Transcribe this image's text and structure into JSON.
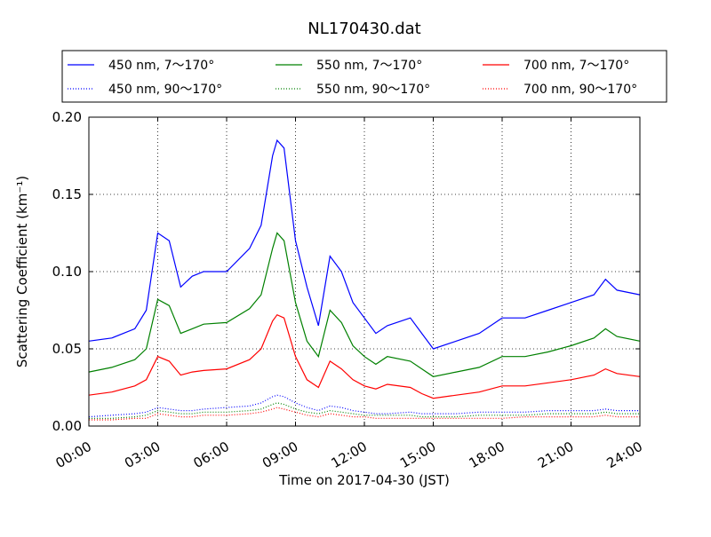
{
  "chart_data": {
    "type": "line",
    "title": "NL170430.dat",
    "xlabel": "Time on 2017-04-30 (JST)",
    "ylabel": "Scattering Coefficient (km⁻¹)",
    "xlim": [
      "00:00",
      "24:00"
    ],
    "ylim": [
      0,
      0.2
    ],
    "grid": true,
    "legend_position": "top",
    "x_ticks": [
      "00:00",
      "03:00",
      "06:00",
      "09:00",
      "12:00",
      "15:00",
      "18:00",
      "21:00",
      "24:00"
    ],
    "y_ticks": [
      "0.00",
      "0.05",
      "0.10",
      "0.15",
      "0.20"
    ],
    "x_hours": [
      0,
      1,
      2,
      2.5,
      3,
      3.5,
      4,
      4.5,
      5,
      6,
      7,
      7.5,
      8,
      8.2,
      8.5,
      9,
      9.5,
      10,
      10.5,
      11,
      11.5,
      12,
      12.5,
      13,
      14,
      14.5,
      15,
      16,
      17,
      18,
      19,
      20,
      21,
      22,
      22.5,
      23,
      24
    ],
    "series": [
      {
        "name": "450 nm, 7～170°",
        "color": "#0000ff",
        "style": "solid",
        "values": [
          0.055,
          0.057,
          0.063,
          0.075,
          0.125,
          0.12,
          0.09,
          0.097,
          0.1,
          0.1,
          0.115,
          0.13,
          0.175,
          0.185,
          0.18,
          0.12,
          0.09,
          0.065,
          0.11,
          0.1,
          0.08,
          0.07,
          0.06,
          0.065,
          0.07,
          0.06,
          0.05,
          0.055,
          0.06,
          0.07,
          0.07,
          0.075,
          0.08,
          0.085,
          0.095,
          0.088,
          0.085
        ]
      },
      {
        "name": "450 nm, 90～170°",
        "color": "#0000ff",
        "style": "dotted",
        "values": [
          0.006,
          0.007,
          0.008,
          0.009,
          0.012,
          0.011,
          0.01,
          0.01,
          0.011,
          0.012,
          0.013,
          0.015,
          0.019,
          0.02,
          0.019,
          0.015,
          0.012,
          0.01,
          0.013,
          0.012,
          0.01,
          0.009,
          0.008,
          0.008,
          0.009,
          0.008,
          0.008,
          0.008,
          0.009,
          0.009,
          0.009,
          0.01,
          0.01,
          0.01,
          0.011,
          0.01,
          0.01
        ]
      },
      {
        "name": "550 nm, 7～170°",
        "color": "#008000",
        "style": "solid",
        "values": [
          0.035,
          0.038,
          0.043,
          0.05,
          0.082,
          0.078,
          0.06,
          0.063,
          0.066,
          0.067,
          0.076,
          0.085,
          0.115,
          0.125,
          0.12,
          0.08,
          0.055,
          0.045,
          0.075,
          0.067,
          0.052,
          0.045,
          0.04,
          0.045,
          0.042,
          0.037,
          0.032,
          0.035,
          0.038,
          0.045,
          0.045,
          0.048,
          0.052,
          0.057,
          0.063,
          0.058,
          0.055
        ]
      },
      {
        "name": "550 nm, 90～170°",
        "color": "#008000",
        "style": "dotted",
        "values": [
          0.005,
          0.005,
          0.006,
          0.007,
          0.01,
          0.009,
          0.008,
          0.008,
          0.009,
          0.009,
          0.01,
          0.011,
          0.014,
          0.015,
          0.014,
          0.011,
          0.009,
          0.008,
          0.01,
          0.009,
          0.008,
          0.007,
          0.007,
          0.007,
          0.007,
          0.006,
          0.006,
          0.006,
          0.007,
          0.007,
          0.007,
          0.008,
          0.008,
          0.008,
          0.009,
          0.008,
          0.008
        ]
      },
      {
        "name": "700 nm, 7～170°",
        "color": "#ff0000",
        "style": "solid",
        "values": [
          0.02,
          0.022,
          0.026,
          0.03,
          0.045,
          0.042,
          0.033,
          0.035,
          0.036,
          0.037,
          0.043,
          0.05,
          0.068,
          0.072,
          0.07,
          0.045,
          0.03,
          0.025,
          0.042,
          0.037,
          0.03,
          0.026,
          0.024,
          0.027,
          0.025,
          0.021,
          0.018,
          0.02,
          0.022,
          0.026,
          0.026,
          0.028,
          0.03,
          0.033,
          0.037,
          0.034,
          0.032
        ]
      },
      {
        "name": "700 nm, 90～170°",
        "color": "#ff0000",
        "style": "dotted",
        "values": [
          0.004,
          0.004,
          0.005,
          0.005,
          0.008,
          0.007,
          0.006,
          0.006,
          0.007,
          0.007,
          0.008,
          0.009,
          0.011,
          0.012,
          0.011,
          0.009,
          0.007,
          0.006,
          0.008,
          0.007,
          0.006,
          0.006,
          0.005,
          0.005,
          0.005,
          0.005,
          0.005,
          0.005,
          0.005,
          0.005,
          0.006,
          0.006,
          0.006,
          0.006,
          0.007,
          0.006,
          0.006
        ]
      }
    ]
  }
}
